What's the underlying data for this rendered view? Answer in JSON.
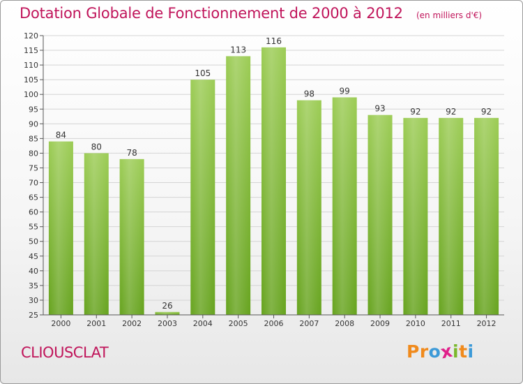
{
  "header": {
    "title": "Dotation Globale de Fonctionnement de 2000 à 2012",
    "unit": "(en milliers d'€)"
  },
  "footer": {
    "commune": "CLIOUSCLAT",
    "brand_letters": [
      "P",
      "r",
      "o",
      "x",
      "i",
      "t",
      "i"
    ],
    "brand_colors": [
      "#f08a1c",
      "#f08a1c",
      "#3c9ad8",
      "#e0208a",
      "#7ab82c",
      "#f08a1c",
      "#3c9ad8"
    ]
  },
  "chart_data": {
    "type": "bar",
    "categories": [
      "2000",
      "2001",
      "2002",
      "2003",
      "2004",
      "2005",
      "2006",
      "2007",
      "2008",
      "2009",
      "2010",
      "2011",
      "2012"
    ],
    "values": [
      84,
      80,
      78,
      26,
      105,
      113,
      116,
      98,
      99,
      93,
      92,
      92,
      92
    ],
    "value_labels": [
      "84",
      "80",
      "78",
      "26",
      "105",
      "113",
      "116",
      "98",
      "99",
      "93",
      "92",
      "92",
      "92"
    ],
    "title": "Dotation Globale de Fonctionnement de 2000 à 2012",
    "xlabel": "",
    "ylabel": "",
    "ylim": [
      25,
      120
    ],
    "yticks": [
      25,
      30,
      35,
      40,
      45,
      50,
      55,
      60,
      65,
      70,
      75,
      80,
      85,
      90,
      95,
      100,
      105,
      110,
      115,
      120
    ],
    "grid": true,
    "bar_color": "#7cb82f",
    "bar_color_light": "#9ccc55",
    "grid_color": "#d4d4d4"
  }
}
